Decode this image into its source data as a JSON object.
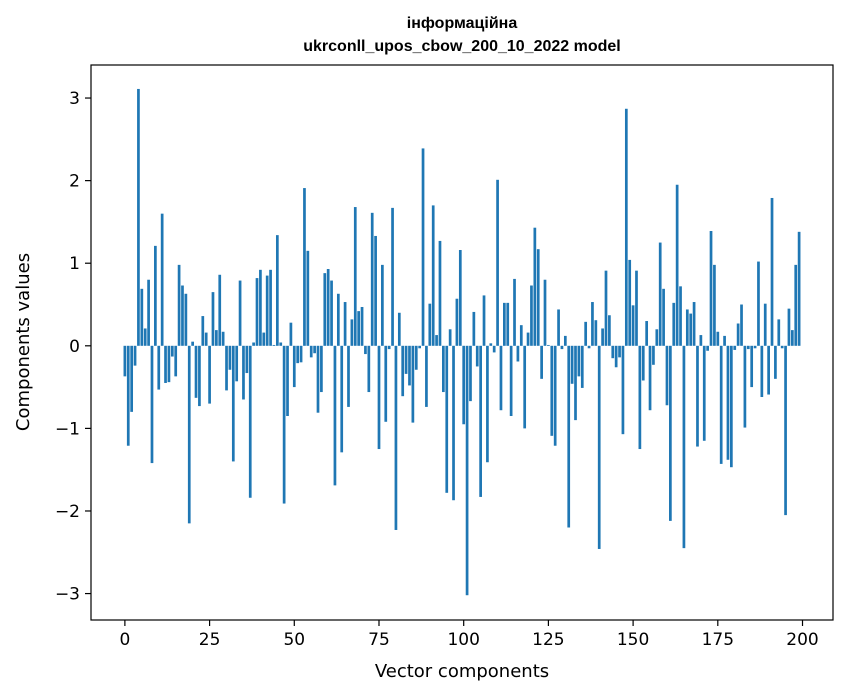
{
  "chart_data": {
    "type": "bar",
    "title": "інформаційна",
    "subtitle": "ukrconll_upos_cbow_200_10_2022 model",
    "xlabel": "Vector components",
    "ylabel": "Components values",
    "xlim": [
      -10,
      209
    ],
    "ylim": [
      -3.32,
      3.4
    ],
    "xticks": [
      0,
      25,
      50,
      75,
      100,
      125,
      150,
      175,
      200
    ],
    "yticks": [
      -3,
      -2,
      -1,
      0,
      1,
      2,
      3
    ],
    "bar_color": "#1f77b4",
    "grid": false,
    "legend": "none",
    "x": [
      0,
      1,
      2,
      3,
      4,
      5,
      6,
      7,
      8,
      9,
      10,
      11,
      12,
      13,
      14,
      15,
      16,
      17,
      18,
      19,
      20,
      21,
      22,
      23,
      24,
      25,
      26,
      27,
      28,
      29,
      30,
      31,
      32,
      33,
      34,
      35,
      36,
      37,
      38,
      39,
      40,
      41,
      42,
      43,
      44,
      45,
      46,
      47,
      48,
      49,
      50,
      51,
      52,
      53,
      54,
      55,
      56,
      57,
      58,
      59,
      60,
      61,
      62,
      63,
      64,
      65,
      66,
      67,
      68,
      69,
      70,
      71,
      72,
      73,
      74,
      75,
      76,
      77,
      78,
      79,
      80,
      81,
      82,
      83,
      84,
      85,
      86,
      87,
      88,
      89,
      90,
      91,
      92,
      93,
      94,
      95,
      96,
      97,
      98,
      99,
      100,
      101,
      102,
      103,
      104,
      105,
      106,
      107,
      108,
      109,
      110,
      111,
      112,
      113,
      114,
      115,
      116,
      117,
      118,
      119,
      120,
      121,
      122,
      123,
      124,
      125,
      126,
      127,
      128,
      129,
      130,
      131,
      132,
      133,
      134,
      135,
      136,
      137,
      138,
      139,
      140,
      141,
      142,
      143,
      144,
      145,
      146,
      147,
      148,
      149,
      150,
      151,
      152,
      153,
      154,
      155,
      156,
      157,
      158,
      159,
      160,
      161,
      162,
      163,
      164,
      165,
      166,
      167,
      168,
      169,
      170,
      171,
      172,
      173,
      174,
      175,
      176,
      177,
      178,
      179,
      180,
      181,
      182,
      183,
      184,
      185,
      186,
      187,
      188,
      189,
      190,
      191,
      192,
      193,
      194,
      195,
      196,
      197,
      198,
      199
    ],
    "values": [
      -0.37,
      -1.21,
      -0.8,
      -0.24,
      3.11,
      0.69,
      0.21,
      0.8,
      -1.42,
      1.21,
      -0.53,
      1.6,
      -0.45,
      -0.44,
      -0.13,
      -0.37,
      0.98,
      0.73,
      0.63,
      -2.15,
      0.05,
      -0.63,
      -0.73,
      0.36,
      0.16,
      -0.7,
      0.65,
      0.19,
      0.86,
      0.17,
      -0.54,
      -0.29,
      -1.4,
      -0.43,
      0.79,
      -0.65,
      -0.33,
      -1.84,
      0.04,
      0.82,
      0.92,
      0.16,
      0.85,
      0.92,
      0.01,
      1.34,
      0.04,
      -1.91,
      -0.85,
      0.28,
      -0.5,
      -0.21,
      -0.2,
      1.91,
      1.15,
      -0.14,
      -0.09,
      -0.81,
      -0.56,
      0.88,
      0.93,
      0.79,
      -1.69,
      0.63,
      -1.29,
      0.53,
      -0.74,
      0.32,
      1.68,
      0.42,
      0.47,
      -0.1,
      -0.56,
      1.61,
      1.33,
      -1.25,
      0.98,
      -0.92,
      -0.04,
      1.67,
      -2.23,
      0.4,
      -0.61,
      -0.34,
      -0.48,
      -0.93,
      -0.29,
      -0.03,
      2.39,
      -0.74,
      0.51,
      1.7,
      0.13,
      1.27,
      -0.56,
      -1.78,
      0.2,
      -1.87,
      0.57,
      1.16,
      -0.95,
      -3.02,
      -0.67,
      0.41,
      -0.25,
      -1.83,
      0.61,
      -1.41,
      0.03,
      -0.08,
      2.01,
      -0.78,
      0.52,
      0.52,
      -0.85,
      0.81,
      -0.19,
      0.25,
      -1.0,
      0.16,
      0.73,
      1.43,
      1.17,
      -0.4,
      0.8,
      0.01,
      -1.09,
      -1.21,
      0.44,
      -0.04,
      0.12,
      -2.2,
      -0.46,
      -0.9,
      -0.37,
      -0.51,
      0.29,
      -0.03,
      0.53,
      0.31,
      -2.46,
      0.21,
      0.91,
      0.37,
      -0.15,
      -0.26,
      -0.14,
      -1.07,
      2.87,
      1.04,
      0.49,
      0.91,
      -1.25,
      -0.42,
      0.3,
      -0.78,
      -0.23,
      0.2,
      1.25,
      0.69,
      -0.72,
      -2.12,
      0.52,
      1.95,
      0.72,
      -2.45,
      0.44,
      0.39,
      0.53,
      -1.22,
      0.13,
      -1.15,
      -0.06,
      1.39,
      0.98,
      0.17,
      -1.43,
      0.12,
      -1.38,
      -1.47,
      -0.05,
      0.27,
      0.5,
      -0.99,
      -0.04,
      -0.5,
      -0.03,
      1.02,
      -0.62,
      0.51,
      -0.59,
      1.79,
      -0.4,
      0.32,
      -0.03,
      -2.05,
      0.45,
      0.19,
      0.98,
      1.38
    ]
  }
}
